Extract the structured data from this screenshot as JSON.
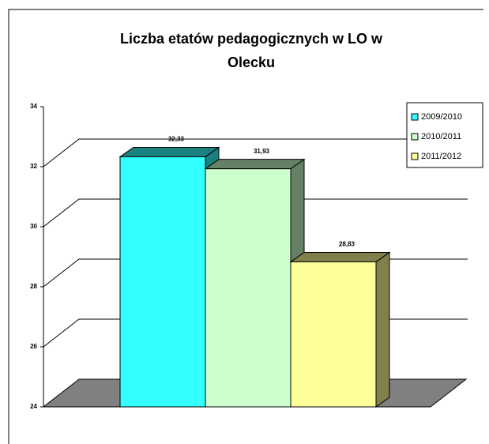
{
  "chart_data": {
    "type": "bar3d",
    "title": "Liczba etatów pedagogicznych w LO w Olecku",
    "series": [
      {
        "name": "2009/2010",
        "color": "#33ffff",
        "values": [
          32.33
        ],
        "value_labels": [
          "32,33"
        ]
      },
      {
        "name": "2010/2011",
        "color": "#ccffcc",
        "values": [
          31.93
        ],
        "value_labels": [
          "31,93"
        ]
      },
      {
        "name": "2011/2012",
        "color": "#ffff99",
        "values": [
          28.83
        ],
        "value_labels": [
          "28,83"
        ]
      }
    ],
    "ylim": [
      24,
      34
    ],
    "yticks": [
      24,
      26,
      28,
      30,
      32,
      34
    ],
    "grid": true,
    "legend": "right"
  }
}
